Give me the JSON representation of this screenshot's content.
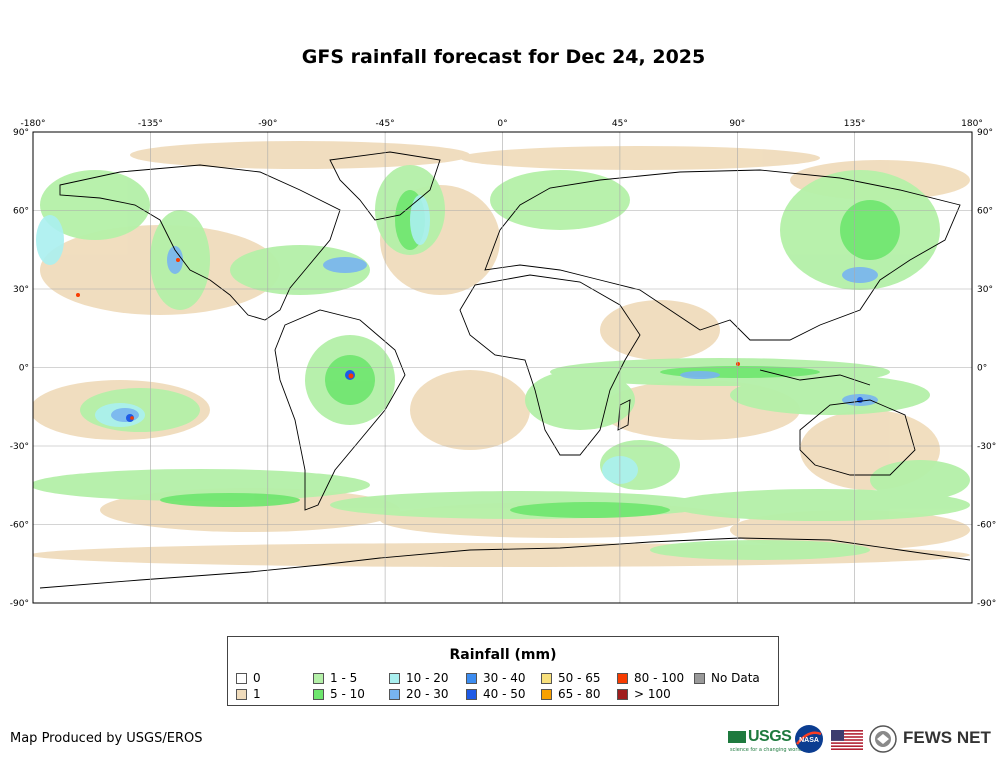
{
  "title": "GFS rainfall forecast for Dec 24, 2025",
  "map": {
    "lon_ticks": [
      "-180°",
      "-135°",
      "-90°",
      "-45°",
      "0°",
      "45°",
      "90°",
      "135°",
      "180°"
    ],
    "lat_ticks": [
      "90°",
      "60°",
      "30°",
      "0°",
      "-30°",
      "-60°",
      "-90°"
    ],
    "land_color": "#ffffff",
    "ocean_color": "#ffffff"
  },
  "legend": {
    "title": "Rainfall (mm)",
    "items": [
      {
        "label": "0",
        "color": "#ffffff"
      },
      {
        "label": "1",
        "color": "#f0dcbc"
      },
      {
        "label": "1 - 5",
        "color": "#b4f0a8"
      },
      {
        "label": "5 - 10",
        "color": "#6ee66e"
      },
      {
        "label": "10 - 20",
        "color": "#aaf0f0"
      },
      {
        "label": "20 - 30",
        "color": "#78b4f0"
      },
      {
        "label": "30 - 40",
        "color": "#3c8cf0"
      },
      {
        "label": "40 - 50",
        "color": "#1e5ae6"
      },
      {
        "label": "50 - 65",
        "color": "#f8e07c"
      },
      {
        "label": "65 - 80",
        "color": "#f8a000"
      },
      {
        "label": "80 - 100",
        "color": "#f83c00"
      },
      {
        "label": "> 100",
        "color": "#a01e1e"
      },
      {
        "label": "No Data",
        "color": "#999999"
      }
    ]
  },
  "footer": {
    "credit": "Map Produced by USGS/EROS",
    "logos": {
      "usgs": "USGS",
      "usgs_tagline": "science for a changing world",
      "nasa": "NASA",
      "fews": "FEWS NET"
    }
  }
}
